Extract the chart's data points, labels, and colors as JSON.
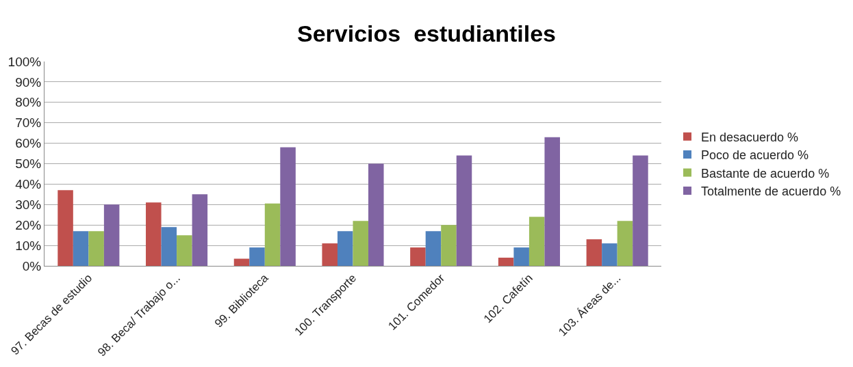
{
  "chart_data": {
    "type": "bar",
    "title": "Servicios  estudiantiles",
    "categories": [
      "97. Becas de estudio",
      "98. Beca/ Trabajo o...",
      "99. Biblioteca",
      "100. Transporte",
      "101. Comedor",
      "102. Cafetín",
      "103. Áreas de..."
    ],
    "series": [
      {
        "name": "En desacuerdo %",
        "color": "#c0504d",
        "values": [
          37,
          31,
          3.5,
          11,
          9,
          4,
          13
        ]
      },
      {
        "name": "Poco de acuerdo %",
        "color": "#4f81bd",
        "values": [
          17,
          19,
          9,
          17,
          17,
          9,
          11
        ]
      },
      {
        "name": "Bastante de acuerdo %",
        "color": "#9bbb59",
        "values": [
          17,
          15,
          30.5,
          22,
          20,
          24,
          22
        ]
      },
      {
        "name": "Totalmente de acuerdo %",
        "color": "#8064a2",
        "values": [
          30,
          35,
          58,
          50,
          54,
          63,
          54
        ]
      }
    ],
    "ylim": [
      0,
      100
    ],
    "yticks": [
      {
        "value": 0,
        "label": "0%"
      },
      {
        "value": 10,
        "label": "10%"
      },
      {
        "value": 20,
        "label": "20%"
      },
      {
        "value": 30,
        "label": "30%"
      },
      {
        "value": 40,
        "label": "40%"
      },
      {
        "value": 50,
        "label": "50%"
      },
      {
        "value": 60,
        "label": "60%"
      },
      {
        "value": 70,
        "label": "70%"
      },
      {
        "value": 80,
        "label": "80%"
      },
      {
        "value": 90,
        "label": "90%"
      },
      {
        "value": 100,
        "label": "100%"
      }
    ],
    "grid": "y",
    "legend": "right"
  }
}
